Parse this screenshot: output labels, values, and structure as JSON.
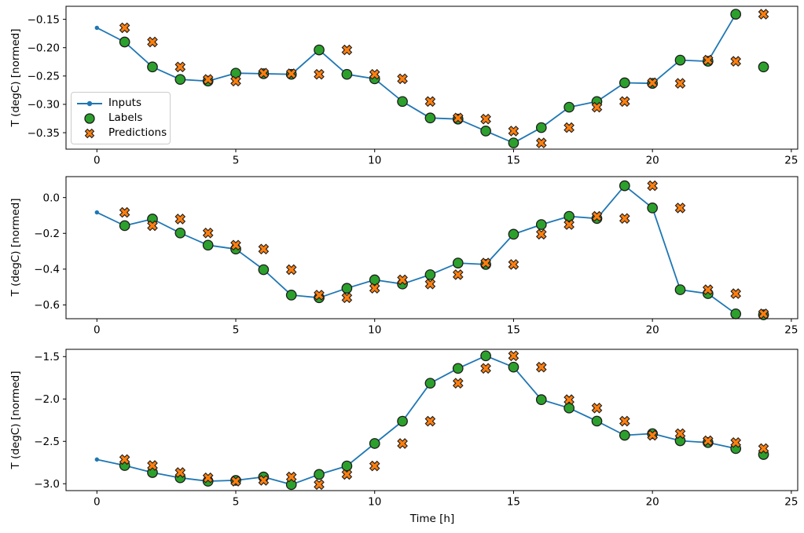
{
  "figure": {
    "background": "#ffffff"
  },
  "legend": {
    "position": "upper-left-inside-first-subplot",
    "border_color": "#cccccc",
    "items": [
      {
        "label": "Inputs",
        "marker": "line-with-dot",
        "color": "#1f77b4"
      },
      {
        "label": "Labels",
        "marker": "circle",
        "color": "#2ca02c",
        "edge": "#1c1c1c"
      },
      {
        "label": "Predictions",
        "marker": "X",
        "color": "#ff7f0e",
        "edge": "#1c1c1c"
      }
    ]
  },
  "chart_data": [
    {
      "type": "line",
      "subtype": "line+scatter",
      "title": "",
      "xlabel": "",
      "ylabel": "T (degC) [normed]",
      "grid": false,
      "xlim": [
        -1.112,
        25.23
      ],
      "ylim": [
        -0.379,
        -0.127
      ],
      "xticks": [
        0,
        5,
        10,
        15,
        20,
        25
      ],
      "xtick_labels": [
        "0",
        "5",
        "10",
        "15",
        "20",
        "25"
      ],
      "yticks": [
        -0.15,
        -0.2,
        -0.25,
        -0.3,
        -0.35
      ],
      "ytick_labels": [
        "−0.15",
        "−0.20",
        "−0.25",
        "−0.30",
        "−0.35"
      ],
      "series": [
        {
          "name": "Inputs",
          "style": "line+dot",
          "color": "#1f77b4",
          "x": [
            0,
            1,
            2,
            3,
            4,
            5,
            6,
            7,
            8,
            9,
            10,
            11,
            12,
            13,
            14,
            15,
            16,
            17,
            18,
            19,
            20,
            21,
            22,
            23
          ],
          "y": [
            -0.165,
            -0.19,
            -0.234,
            -0.256,
            -0.259,
            -0.245,
            -0.246,
            -0.247,
            -0.204,
            -0.247,
            -0.255,
            -0.295,
            -0.324,
            -0.326,
            -0.347,
            -0.368,
            -0.341,
            -0.305,
            -0.295,
            -0.262,
            -0.263,
            -0.222,
            -0.224,
            -0.141
          ]
        },
        {
          "name": "Labels",
          "style": "scatter-circle",
          "color": "#2ca02c",
          "edge": "#1c1c1c",
          "x": [
            1,
            2,
            3,
            4,
            5,
            6,
            7,
            8,
            9,
            10,
            11,
            12,
            13,
            14,
            15,
            16,
            17,
            18,
            19,
            20,
            21,
            22,
            23,
            24
          ],
          "y": [
            -0.19,
            -0.234,
            -0.256,
            -0.259,
            -0.245,
            -0.246,
            -0.247,
            -0.204,
            -0.247,
            -0.255,
            -0.295,
            -0.324,
            -0.326,
            -0.347,
            -0.368,
            -0.341,
            -0.305,
            -0.295,
            -0.262,
            -0.263,
            -0.222,
            -0.224,
            -0.141,
            -0.234
          ]
        },
        {
          "name": "Predictions",
          "style": "scatter-X",
          "color": "#ff7f0e",
          "edge": "#1c1c1c",
          "x": [
            1,
            2,
            3,
            4,
            5,
            6,
            7,
            8,
            9,
            10,
            11,
            12,
            13,
            14,
            15,
            16,
            17,
            18,
            19,
            20,
            21,
            22,
            23,
            24
          ],
          "y": [
            -0.165,
            -0.19,
            -0.234,
            -0.256,
            -0.259,
            -0.245,
            -0.246,
            -0.247,
            -0.204,
            -0.247,
            -0.255,
            -0.295,
            -0.324,
            -0.326,
            -0.347,
            -0.368,
            -0.341,
            -0.305,
            -0.295,
            -0.262,
            -0.263,
            -0.222,
            -0.224,
            -0.141
          ]
        }
      ]
    },
    {
      "type": "line",
      "subtype": "line+scatter",
      "title": "",
      "xlabel": "",
      "ylabel": "T (degC) [normed]",
      "grid": false,
      "xlim": [
        -1.112,
        25.23
      ],
      "ylim": [
        -0.677,
        0.117
      ],
      "xticks": [
        0,
        5,
        10,
        15,
        20,
        25
      ],
      "xtick_labels": [
        "0",
        "5",
        "10",
        "15",
        "20",
        "25"
      ],
      "yticks": [
        0.0,
        -0.2,
        -0.4,
        -0.6
      ],
      "ytick_labels": [
        "0.0",
        "−0.2",
        "−0.4",
        "−0.6"
      ],
      "series": [
        {
          "name": "Inputs",
          "style": "line+dot",
          "color": "#1f77b4",
          "x": [
            0,
            1,
            2,
            3,
            4,
            5,
            6,
            7,
            8,
            9,
            10,
            11,
            12,
            13,
            14,
            15,
            16,
            17,
            18,
            19,
            20,
            21,
            22,
            23
          ],
          "y": [
            -0.083,
            -0.157,
            -0.12,
            -0.198,
            -0.266,
            -0.288,
            -0.403,
            -0.545,
            -0.56,
            -0.507,
            -0.46,
            -0.483,
            -0.431,
            -0.366,
            -0.374,
            -0.205,
            -0.151,
            -0.105,
            -0.117,
            0.066,
            -0.058,
            -0.515,
            -0.537,
            -0.65
          ]
        },
        {
          "name": "Labels",
          "style": "scatter-circle",
          "color": "#2ca02c",
          "edge": "#1c1c1c",
          "x": [
            1,
            2,
            3,
            4,
            5,
            6,
            7,
            8,
            9,
            10,
            11,
            12,
            13,
            14,
            15,
            16,
            17,
            18,
            19,
            20,
            21,
            22,
            23,
            24
          ],
          "y": [
            -0.157,
            -0.12,
            -0.198,
            -0.266,
            -0.288,
            -0.403,
            -0.545,
            -0.56,
            -0.507,
            -0.46,
            -0.483,
            -0.431,
            -0.366,
            -0.374,
            -0.205,
            -0.151,
            -0.105,
            -0.117,
            0.066,
            -0.058,
            -0.515,
            -0.537,
            -0.65,
            -0.655
          ]
        },
        {
          "name": "Predictions",
          "style": "scatter-X",
          "color": "#ff7f0e",
          "edge": "#1c1c1c",
          "x": [
            1,
            2,
            3,
            4,
            5,
            6,
            7,
            8,
            9,
            10,
            11,
            12,
            13,
            14,
            15,
            16,
            17,
            18,
            19,
            20,
            21,
            22,
            23,
            24
          ],
          "y": [
            -0.083,
            -0.157,
            -0.12,
            -0.198,
            -0.266,
            -0.288,
            -0.403,
            -0.545,
            -0.56,
            -0.507,
            -0.46,
            -0.483,
            -0.431,
            -0.366,
            -0.374,
            -0.205,
            -0.151,
            -0.105,
            -0.117,
            0.066,
            -0.058,
            -0.515,
            -0.537,
            -0.65
          ]
        }
      ]
    },
    {
      "type": "line",
      "subtype": "line+scatter",
      "title": "",
      "xlabel": "Time [h]",
      "ylabel": "T (degC) [normed]",
      "grid": false,
      "xlim": [
        -1.112,
        25.23
      ],
      "ylim": [
        -3.081,
        -1.414
      ],
      "xticks": [
        0,
        5,
        10,
        15,
        20,
        25
      ],
      "xtick_labels": [
        "0",
        "5",
        "10",
        "15",
        "20",
        "25"
      ],
      "yticks": [
        -1.5,
        -2.0,
        -2.5,
        -3.0
      ],
      "ytick_labels": [
        "−1.5",
        "−2.0",
        "−2.5",
        "−3.0"
      ],
      "series": [
        {
          "name": "Inputs",
          "style": "line+dot",
          "color": "#1f77b4",
          "x": [
            0,
            1,
            2,
            3,
            4,
            5,
            6,
            7,
            8,
            9,
            10,
            11,
            12,
            13,
            14,
            15,
            16,
            17,
            18,
            19,
            20,
            21,
            22,
            23
          ],
          "y": [
            -2.714,
            -2.785,
            -2.868,
            -2.93,
            -2.97,
            -2.96,
            -2.92,
            -3.01,
            -2.89,
            -2.79,
            -2.525,
            -2.262,
            -1.814,
            -1.639,
            -1.491,
            -1.624,
            -2.008,
            -2.107,
            -2.261,
            -2.428,
            -2.409,
            -2.493,
            -2.514,
            -2.585
          ]
        },
        {
          "name": "Labels",
          "style": "scatter-circle",
          "color": "#2ca02c",
          "edge": "#1c1c1c",
          "x": [
            1,
            2,
            3,
            4,
            5,
            6,
            7,
            8,
            9,
            10,
            11,
            12,
            13,
            14,
            15,
            16,
            17,
            18,
            19,
            20,
            21,
            22,
            23,
            24
          ],
          "y": [
            -2.785,
            -2.868,
            -2.93,
            -2.97,
            -2.96,
            -2.92,
            -3.01,
            -2.89,
            -2.79,
            -2.525,
            -2.262,
            -1.814,
            -1.639,
            -1.491,
            -1.624,
            -2.008,
            -2.107,
            -2.261,
            -2.428,
            -2.409,
            -2.493,
            -2.514,
            -2.585,
            -2.655
          ]
        },
        {
          "name": "Predictions",
          "style": "scatter-X",
          "color": "#ff7f0e",
          "edge": "#1c1c1c",
          "x": [
            1,
            2,
            3,
            4,
            5,
            6,
            7,
            8,
            9,
            10,
            11,
            12,
            13,
            14,
            15,
            16,
            17,
            18,
            19,
            20,
            21,
            22,
            23,
            24
          ],
          "y": [
            -2.714,
            -2.785,
            -2.868,
            -2.93,
            -2.97,
            -2.96,
            -2.92,
            -3.01,
            -2.89,
            -2.79,
            -2.525,
            -2.262,
            -1.814,
            -1.639,
            -1.491,
            -1.624,
            -2.008,
            -2.107,
            -2.261,
            -2.428,
            -2.409,
            -2.493,
            -2.514,
            -2.585
          ]
        }
      ]
    }
  ]
}
